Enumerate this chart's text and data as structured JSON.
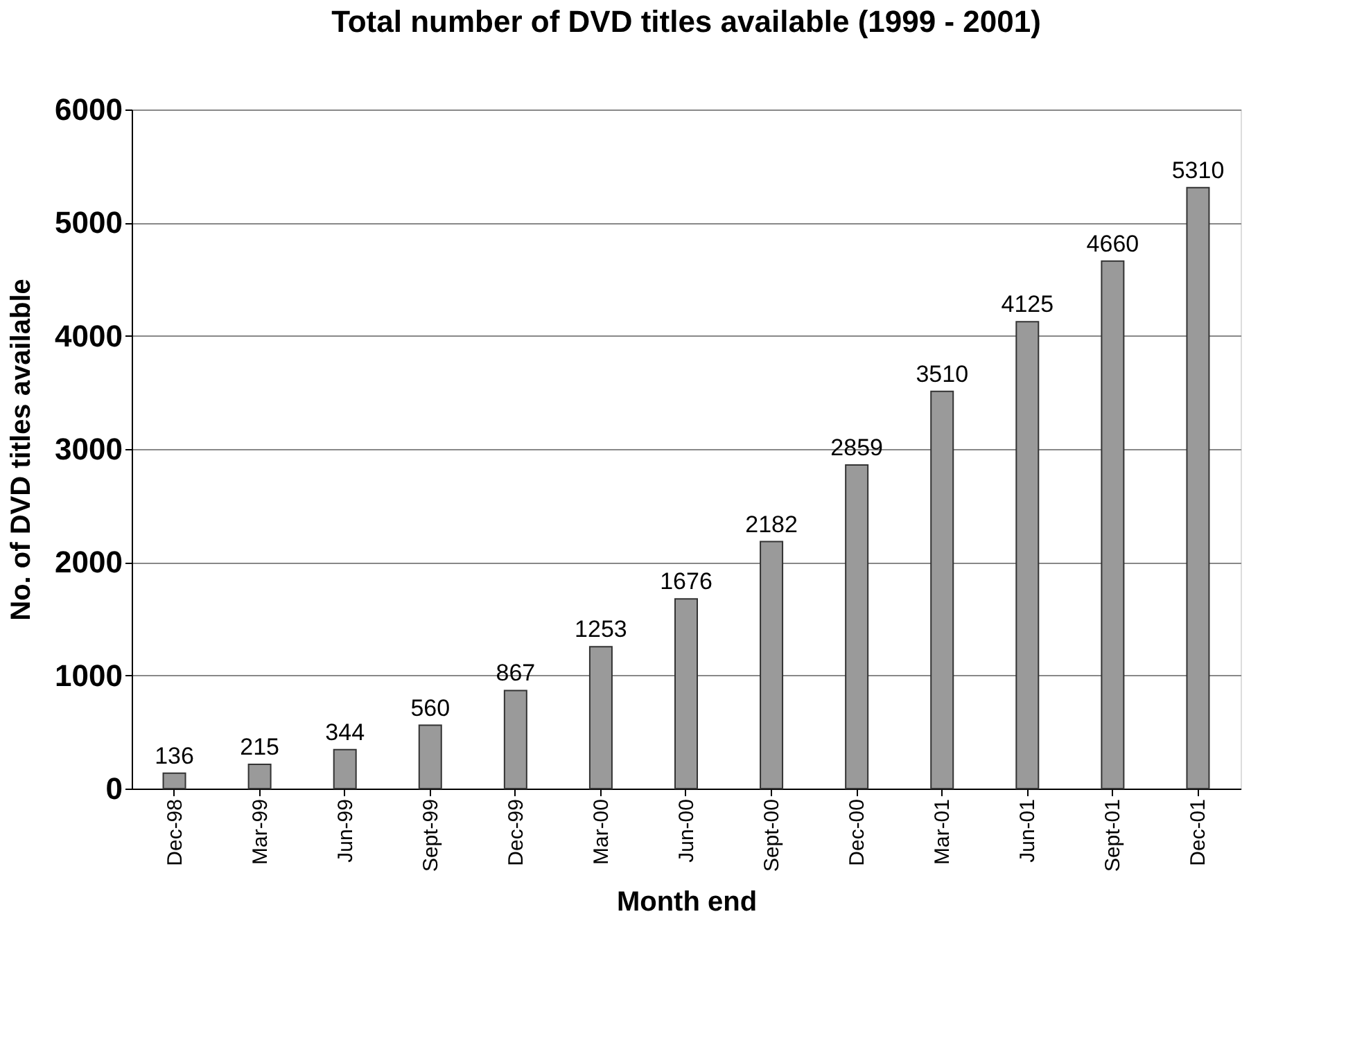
{
  "chart_data": {
    "type": "bar",
    "title": "Total number of DVD titles available (1999 - 2001)",
    "xlabel": "Month end",
    "ylabel": "No. of DVD titles available",
    "categories": [
      "Dec-98",
      "Mar-99",
      "Jun-99",
      "Sept-99",
      "Dec-99",
      "Mar-00",
      "Jun-00",
      "Sept-00",
      "Dec-00",
      "Mar-01",
      "Jun-01",
      "Sept-01",
      "Dec-01"
    ],
    "values": [
      136,
      215,
      344,
      560,
      867,
      1253,
      1676,
      2182,
      2859,
      3510,
      4125,
      4660,
      5310
    ],
    "color": "#9a9a9a",
    "ylim": [
      0,
      6000
    ],
    "yticks": [
      0,
      1000,
      2000,
      3000,
      4000,
      5000,
      6000
    ],
    "grid": "y",
    "data_labels": true
  }
}
